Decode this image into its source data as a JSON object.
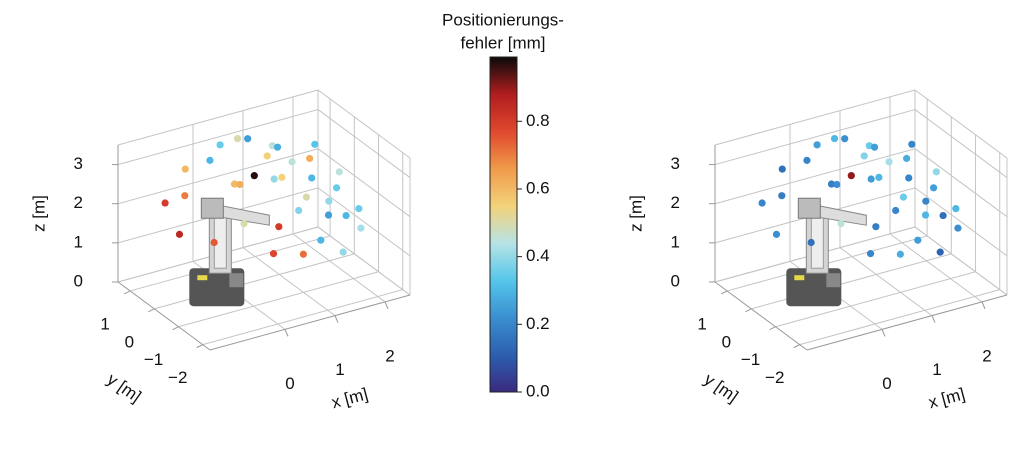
{
  "chart_data": [
    {
      "type": "scatter3d",
      "x": [
        -0.8,
        -0.6,
        -0.9,
        -0.3,
        0.0,
        0.3,
        0.6,
        0.9,
        1.2,
        0.2,
        0.5,
        0.8,
        1.1,
        1.4,
        1.6,
        1.8,
        1.3,
        1.7,
        2.0,
        2.2,
        1.9,
        2.1,
        1.5,
        1.0,
        0.7,
        1.2,
        0.9,
        0.4,
        1.6,
        2.3,
        1.0,
        0.5,
        1.4,
        0.1,
        2.0,
        -0.4
      ],
      "y": [
        1.0,
        0.6,
        0.2,
        1.2,
        0.8,
        1.0,
        0.9,
        1.1,
        0.7,
        0.2,
        0.0,
        -0.2,
        0.1,
        0.3,
        -0.1,
        0.4,
        -0.5,
        -0.6,
        -0.3,
        0.0,
        -0.9,
        -1.1,
        -1.0,
        -0.8,
        -0.6,
        -1.3,
        -1.2,
        -1.0,
        -1.4,
        -0.6,
        0.5,
        0.6,
        0.9,
        -0.4,
        0.6,
        -0.2
      ],
      "z": [
        2.0,
        2.3,
        1.6,
        2.6,
        2.9,
        3.1,
        3.2,
        3.0,
        2.9,
        2.5,
        2.7,
        2.6,
        2.4,
        2.6,
        2.3,
        2.5,
        2.1,
        1.9,
        2.0,
        2.2,
        1.6,
        1.3,
        1.8,
        2.0,
        1.6,
        1.4,
        1.1,
        1.2,
        1.0,
        1.5,
        2.8,
        2.2,
        2.7,
        1.8,
        2.7,
        1.4
      ],
      "values": [
        0.8,
        0.7,
        0.85,
        0.6,
        0.3,
        0.35,
        0.5,
        0.25,
        0.45,
        0.6,
        0.97,
        0.4,
        0.55,
        0.45,
        0.3,
        0.62,
        0.5,
        0.4,
        0.35,
        0.45,
        0.3,
        0.42,
        0.25,
        0.38,
        0.8,
        0.3,
        0.72,
        0.78,
        0.4,
        0.35,
        0.55,
        0.62,
        0.28,
        0.5,
        0.33,
        0.75
      ],
      "xlim": [
        -1.5,
        2.5
      ],
      "ylim": [
        -2.3,
        1.5
      ],
      "zlim": [
        0,
        3.5
      ],
      "xticks": [
        0,
        1,
        2
      ],
      "yticks": [
        {
          "value": -2,
          "label": "−2"
        },
        {
          "value": -1,
          "label": "−1"
        },
        0,
        1
      ],
      "zticks": [
        0,
        1,
        2,
        3
      ],
      "xlabel": "x [m]",
      "ylabel": "y [m]",
      "zlabel": "z [m]"
    },
    {
      "type": "scatter3d",
      "x": [
        -0.8,
        -0.6,
        -0.9,
        -0.3,
        0.0,
        0.3,
        0.6,
        0.9,
        1.2,
        0.2,
        0.5,
        0.8,
        1.1,
        1.4,
        1.6,
        1.8,
        1.3,
        1.7,
        2.0,
        2.2,
        1.9,
        2.1,
        1.5,
        1.0,
        0.7,
        1.2,
        0.9,
        0.4,
        1.6,
        2.3,
        1.0,
        0.5,
        1.4,
        0.1,
        2.0,
        -0.4
      ],
      "y": [
        1.0,
        0.6,
        0.2,
        1.2,
        0.8,
        1.0,
        0.9,
        1.1,
        0.7,
        0.2,
        0.0,
        -0.2,
        0.1,
        0.3,
        -0.1,
        0.4,
        -0.5,
        -0.6,
        -0.3,
        0.0,
        -0.9,
        -1.1,
        -1.0,
        -0.8,
        -0.6,
        -1.3,
        -1.2,
        -1.0,
        -1.4,
        -0.6,
        0.5,
        0.6,
        0.9,
        -0.4,
        0.6,
        -0.2
      ],
      "z": [
        2.0,
        2.3,
        1.6,
        2.6,
        2.9,
        3.1,
        3.2,
        3.0,
        2.9,
        2.5,
        2.7,
        2.6,
        2.4,
        2.6,
        2.3,
        2.5,
        2.1,
        1.9,
        2.0,
        2.2,
        1.6,
        1.3,
        1.8,
        2.0,
        1.6,
        1.4,
        1.1,
        1.2,
        1.0,
        1.5,
        2.8,
        2.2,
        2.7,
        1.8,
        2.7,
        1.4
      ],
      "values": [
        0.2,
        0.18,
        0.22,
        0.15,
        0.2,
        0.25,
        0.3,
        0.22,
        0.35,
        0.18,
        0.9,
        0.25,
        0.3,
        0.42,
        0.2,
        0.28,
        0.35,
        0.2,
        0.25,
        0.4,
        0.15,
        0.22,
        0.3,
        0.2,
        0.18,
        0.25,
        0.28,
        0.2,
        0.12,
        0.3,
        0.38,
        0.22,
        0.25,
        0.45,
        0.2,
        0.15
      ],
      "xlim": [
        -1.5,
        2.5
      ],
      "ylim": [
        -2.3,
        1.5
      ],
      "zlim": [
        0,
        3.5
      ],
      "xticks": [
        0,
        1,
        2
      ],
      "yticks": [
        {
          "value": -2,
          "label": "−2"
        },
        {
          "value": -1,
          "label": "−1"
        },
        0,
        1
      ],
      "zticks": [
        0,
        1,
        2,
        3
      ],
      "xlabel": "x [m]",
      "ylabel": "y [m]",
      "zlabel": "z [m]"
    }
  ],
  "colorbar": {
    "label": [
      "Positionierungs-",
      "fehler [mm]"
    ],
    "clim": [
      0,
      0.99
    ],
    "colormap": [
      "#3b2a80",
      "#2c5fb0",
      "#3a8fd0",
      "#55c6ea",
      "#b7e3e5",
      "#f3d27a",
      "#f09a4a",
      "#e0482e",
      "#b01d1e",
      "#0a0a0a"
    ],
    "ticks": [
      {
        "value": 0,
        "label": "0.0"
      },
      {
        "value": 0.2,
        "label": "0.2"
      },
      {
        "value": 0.4,
        "label": "0.4"
      },
      {
        "value": 0.6,
        "label": "0.6"
      },
      {
        "value": 0.8,
        "label": "0.8"
      }
    ]
  }
}
